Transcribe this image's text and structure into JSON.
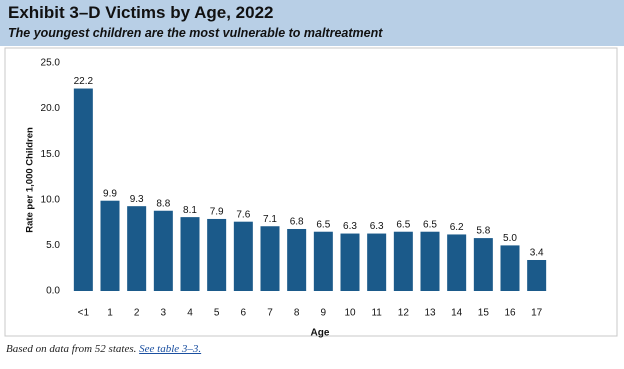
{
  "chart_data": {
    "type": "bar",
    "title": "Exhibit 3–D Victims by Age, 2022",
    "subtitle": "The youngest children are the most vulnerable to maltreatment",
    "x_label": "Age",
    "y_label": "Rate per 1,000 Children",
    "categories": [
      "<1",
      "1",
      "2",
      "3",
      "4",
      "5",
      "6",
      "7",
      "8",
      "9",
      "10",
      "11",
      "12",
      "13",
      "14",
      "15",
      "16",
      "17"
    ],
    "values": [
      22.2,
      9.9,
      9.3,
      8.8,
      8.1,
      7.9,
      7.6,
      7.1,
      6.8,
      6.5,
      6.3,
      6.3,
      6.5,
      6.5,
      6.2,
      5.8,
      5.0,
      3.4
    ],
    "value_labels": [
      "22.2",
      "9.9",
      "9.3",
      "8.8",
      "8.1",
      "7.9",
      "7.6",
      "7.1",
      "6.8",
      "6.5",
      "6.3",
      "6.3",
      "6.5",
      "6.5",
      "6.2",
      "5.8",
      "5.0",
      "3.4"
    ],
    "color": "#1b5a8a",
    "ylim": [
      0,
      25
    ],
    "yticks": [
      {
        "value": 0,
        "label": "0.0"
      },
      {
        "value": 5,
        "label": "5.0"
      },
      {
        "value": 10,
        "label": "10.0"
      },
      {
        "value": 15,
        "label": "15.0"
      },
      {
        "value": 20,
        "label": "20.0"
      },
      {
        "value": 25,
        "label": "25.0"
      }
    ],
    "note": "Based on data from 52 states.",
    "note_link": "See table 3–3."
  }
}
